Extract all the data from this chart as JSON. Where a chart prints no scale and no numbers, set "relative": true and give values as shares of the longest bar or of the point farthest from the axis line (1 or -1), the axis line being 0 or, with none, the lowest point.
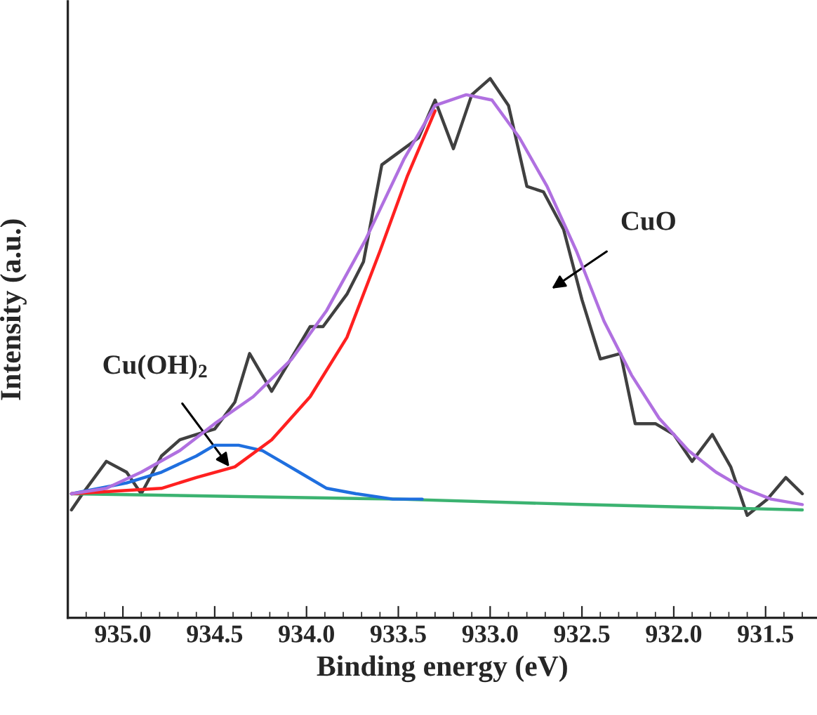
{
  "chart_data": {
    "type": "line",
    "relative": true,
    "xlabel": "Binding energy (eV)",
    "ylabel": "Intensity (a.u.)",
    "xlim": [
      935.3,
      931.22
    ],
    "xticks": [
      {
        "value": 935.0,
        "label": "935.0"
      },
      {
        "value": 934.5,
        "label": "934.5"
      },
      {
        "value": 934.0,
        "label": "934.0"
      },
      {
        "value": 933.5,
        "label": "933.5"
      },
      {
        "value": 933.0,
        "label": "933.0"
      },
      {
        "value": 932.5,
        "label": "932.5"
      },
      {
        "value": 932.0,
        "label": "932.0"
      },
      {
        "value": 931.5,
        "label": "931.5"
      }
    ],
    "grid": false,
    "series": [
      {
        "color": "#404040",
        "x": [
          935.28,
          935.22,
          935.09,
          934.98,
          934.9,
          934.79,
          934.69,
          934.6,
          934.5,
          934.39,
          934.31,
          934.19,
          933.98,
          933.91,
          933.78,
          933.69,
          933.59,
          933.47,
          933.39,
          933.3,
          933.2,
          933.1,
          933.0,
          932.9,
          932.8,
          932.71,
          932.6,
          932.5,
          932.4,
          932.29,
          932.21,
          932.1,
          932.0,
          931.9,
          931.79,
          931.69,
          931.6,
          931.49,
          931.39,
          931.3
        ],
        "values": [
          0.2,
          0.23,
          0.29,
          0.27,
          0.23,
          0.3,
          0.33,
          0.34,
          0.35,
          0.4,
          0.49,
          0.42,
          0.54,
          0.54,
          0.6,
          0.66,
          0.84,
          0.87,
          0.89,
          0.96,
          0.87,
          0.97,
          1.0,
          0.95,
          0.8,
          0.79,
          0.72,
          0.59,
          0.48,
          0.49,
          0.36,
          0.36,
          0.34,
          0.29,
          0.34,
          0.28,
          0.19,
          0.22,
          0.26,
          0.23
        ]
      },
      {
        "color": "#3cb371",
        "x": [
          935.28,
          933.5,
          932.5,
          931.3
        ],
        "values": [
          0.23,
          0.22,
          0.21,
          0.2
        ]
      },
      {
        "color": "#1f6fdf",
        "x": [
          935.28,
          934.98,
          934.79,
          934.6,
          934.5,
          934.37,
          934.24,
          934.14,
          934.04,
          933.89,
          933.73,
          933.53,
          933.37
        ],
        "values": [
          0.23,
          0.25,
          0.27,
          0.3,
          0.32,
          0.32,
          0.31,
          0.29,
          0.27,
          0.24,
          0.23,
          0.22,
          0.22
        ]
      },
      {
        "color": "#ff2020",
        "x": [
          935.28,
          934.79,
          934.6,
          934.39,
          934.19,
          933.98,
          933.78,
          933.6,
          933.45,
          933.3
        ],
        "values": [
          0.23,
          0.24,
          0.26,
          0.28,
          0.33,
          0.41,
          0.52,
          0.68,
          0.82,
          0.94
        ]
      },
      {
        "color": "#b070e0",
        "x": [
          935.28,
          935.09,
          934.9,
          934.69,
          934.5,
          934.29,
          934.08,
          933.89,
          933.68,
          933.47,
          933.3,
          933.13,
          932.99,
          932.84,
          932.69,
          932.53,
          932.38,
          932.23,
          932.08,
          931.92,
          931.77,
          931.62,
          931.47,
          931.3
        ],
        "values": [
          0.23,
          0.24,
          0.27,
          0.31,
          0.36,
          0.41,
          0.48,
          0.57,
          0.7,
          0.85,
          0.95,
          0.97,
          0.96,
          0.89,
          0.8,
          0.68,
          0.55,
          0.45,
          0.37,
          0.31,
          0.27,
          0.24,
          0.22,
          0.21
        ]
      }
    ],
    "annotations": [
      {
        "text": "Cu(OH)$_{2}$",
        "x": 934.42,
        "y": 0.28
      },
      "CuO"
    ]
  }
}
